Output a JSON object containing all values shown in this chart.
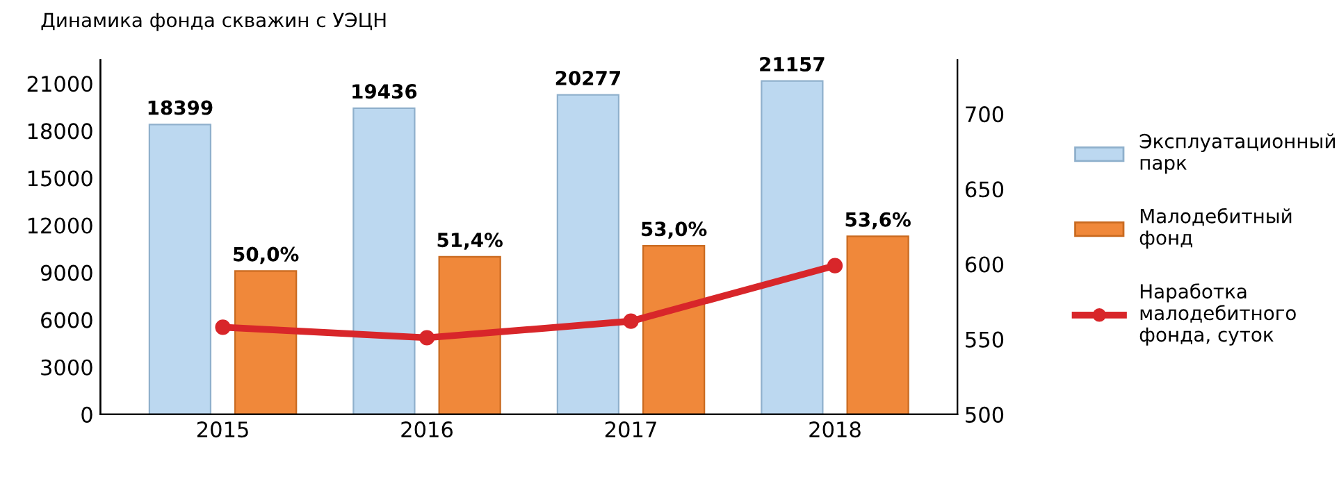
{
  "chart_data": {
    "type": "bar",
    "title": "Динамика фонда скважин с УЭЦН",
    "categories": [
      "2015",
      "2016",
      "2017",
      "2018"
    ],
    "series": [
      {
        "name": "Эксплуатационный\nпарк",
        "color": "#bcd8f0",
        "values": [
          18399,
          19436,
          20277,
          21157
        ],
        "value_labels": [
          "18399",
          "19436",
          "20277",
          "21157"
        ]
      },
      {
        "name": "Малодебитный\nфонд",
        "color": "#f0883a",
        "values": [
          9100,
          10000,
          10700,
          11300
        ]
      },
      {
        "name": "Наработка\nмалодебитного\nфонда, суток",
        "type": "line",
        "axis": "y2",
        "color": "#d8262a",
        "marker": "circle",
        "values": [
          558,
          551,
          562,
          599
        ]
      }
    ],
    "annotations": [
      "50,0%",
      "51,4%",
      "53,0%",
      "53,6%"
    ],
    "ylim": [
      0,
      22500
    ],
    "yticks": [
      0,
      3000,
      6000,
      9000,
      12000,
      15000,
      18000,
      21000
    ],
    "y2lim": [
      500,
      736
    ],
    "y2ticks": [
      500,
      550,
      600,
      650,
      700
    ],
    "grid": false,
    "legend": "right"
  }
}
